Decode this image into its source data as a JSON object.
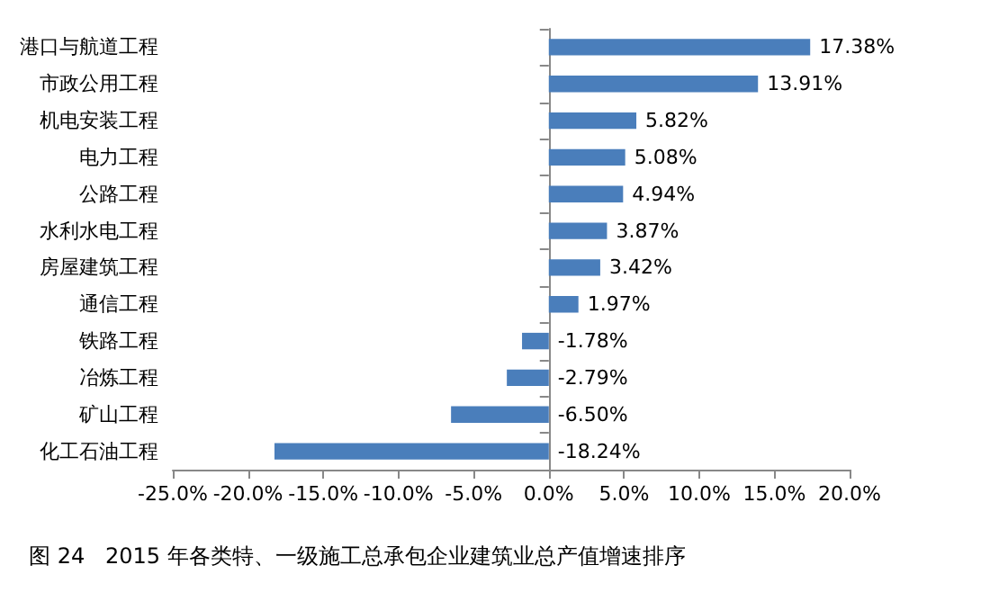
{
  "chart_data": {
    "type": "bar",
    "orientation": "horizontal",
    "categories": [
      "港口与航道工程",
      "市政公用工程",
      "机电安装工程",
      "电力工程",
      "公路工程",
      "水利水电工程",
      "房屋建筑工程",
      "通信工程",
      "铁路工程",
      "冶炼工程",
      "矿山工程",
      "化工石油工程"
    ],
    "values": [
      17.38,
      13.91,
      5.82,
      5.08,
      4.94,
      3.87,
      3.42,
      1.97,
      -1.78,
      -2.79,
      -6.5,
      -18.24
    ],
    "value_labels": [
      "17.38%",
      "13.91%",
      "5.82%",
      "5.08%",
      "4.94%",
      "3.87%",
      "3.42%",
      "1.97%",
      "-1.78%",
      "-2.79%",
      "-6.50%",
      "-18.24%"
    ],
    "color": "#4a7ebb",
    "xlim": [
      -25,
      20
    ],
    "xticks": [
      {
        "value": -25,
        "label": "-25.0%"
      },
      {
        "value": -20,
        "label": "-20.0%"
      },
      {
        "value": -15,
        "label": "-15.0%"
      },
      {
        "value": -10,
        "label": "-10.0%"
      },
      {
        "value": -5,
        "label": "-5.0%"
      },
      {
        "value": 0,
        "label": "0.0%"
      },
      {
        "value": 5,
        "label": "5.0%"
      },
      {
        "value": 10,
        "label": "10.0%"
      },
      {
        "value": 15,
        "label": "15.0%"
      },
      {
        "value": 20,
        "label": "20.0%"
      }
    ],
    "annotations": [
      "图 24   2015 年各类特、一级施工总承包企业建筑业总产值增速排序"
    ]
  }
}
